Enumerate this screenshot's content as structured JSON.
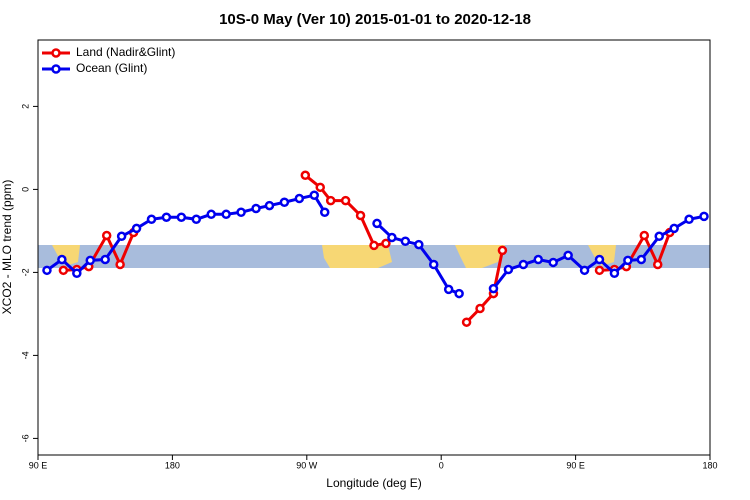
{
  "chart_data": {
    "type": "line",
    "title": "10S-0 May (Ver 10)   2015-01-01 to 2020-12-18",
    "x_label": "Longitude (deg E)",
    "y_label": "XCO2 - MLO trend (ppm)",
    "xlim": [
      90,
      540
    ],
    "xticks": [
      {
        "value": 90,
        "label": "90 E"
      },
      180,
      {
        "value": 270,
        "label": "90 W"
      },
      {
        "value": 360,
        "label": "0"
      },
      {
        "value": 450,
        "label": "90 E"
      },
      {
        "value": 540,
        "label": "180"
      }
    ],
    "ylim": [
      -6.4,
      3.6
    ],
    "yticks": [
      -6,
      -4,
      -2,
      0,
      2
    ],
    "legend": "top-left",
    "series": [
      {
        "name": "Land (Nadir&Glint)",
        "color": "#ee0000",
        "x": [
          107,
          116,
          124,
          136,
          145,
          154,
          210,
          269,
          279,
          286,
          296,
          306,
          315,
          323,
          350,
          377,
          386,
          395,
          401,
          430,
          466,
          476,
          484,
          496,
          505,
          513
        ],
        "values": [
          -1.95,
          -1.93,
          -1.86,
          -1.11,
          -1.81,
          -1.04,
          null,
          0.34,
          0.05,
          -0.27,
          -0.27,
          -0.63,
          -1.35,
          -1.3,
          null,
          -3.2,
          -2.87,
          -2.51,
          -1.47,
          null,
          -1.95,
          -1.93,
          -1.86,
          -1.11,
          -1.81,
          -1.04
        ]
      },
      {
        "name": "Ocean (Glint)",
        "color": "#0000ee",
        "x": [
          96,
          106,
          116,
          125,
          135,
          146,
          156,
          166,
          176,
          186,
          196,
          206,
          216,
          226,
          236,
          245,
          255,
          265,
          275,
          282,
          300,
          317,
          327,
          336,
          345,
          355,
          365,
          372,
          385,
          395,
          405,
          415,
          425,
          435,
          445,
          456,
          466,
          476,
          485,
          494,
          506,
          516,
          526,
          536
        ],
        "values": [
          -1.95,
          -1.69,
          -2.02,
          -1.71,
          -1.69,
          -1.13,
          -0.94,
          -0.72,
          -0.67,
          -0.67,
          -0.72,
          -0.6,
          -0.6,
          -0.55,
          -0.46,
          -0.39,
          -0.31,
          -0.22,
          -0.14,
          -0.55,
          null,
          -0.82,
          -1.16,
          -1.25,
          -1.33,
          -1.81,
          -2.41,
          -2.51,
          null,
          -2.39,
          -1.93,
          -1.81,
          -1.69,
          -1.76,
          -1.59,
          -1.95,
          -1.69,
          -2.02,
          -1.71,
          -1.69,
          -1.13,
          -0.94,
          -0.72,
          -0.65
        ]
      }
    ]
  }
}
